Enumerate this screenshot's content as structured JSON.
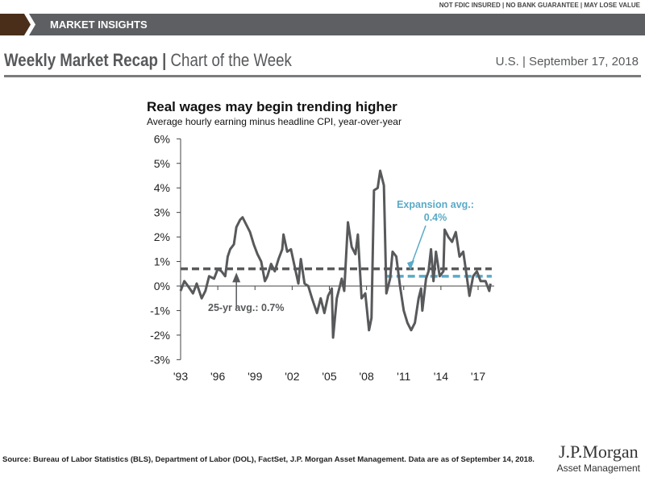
{
  "disclaimer": "NOT FDIC INSURED | NO BANK GUARANTEE | MAY LOSE VALUE",
  "banner": "MARKET INSIGHTS",
  "title_bold": "Weekly Market Recap |",
  "title_light": " Chart of the Week",
  "region_date": "U.S. | September 17, 2018",
  "source": "Source: Bureau of Labor Statistics (BLS), Department of Labor (DOL), FactSet, J.P. Morgan Asset Management. Data are as of September 14, 2018.",
  "logo": {
    "name": "J.P.Morgan",
    "sub": "Asset Management"
  },
  "chart_data": {
    "type": "line",
    "title": "Real wages may begin trending higher",
    "subtitle": "Average hourly earning minus headline CPI, year-over-year",
    "ylim": [
      -3,
      6
    ],
    "yticks": [
      "6%",
      "5%",
      "4%",
      "3%",
      "2%",
      "1%",
      "0%",
      "-1%",
      "-2%",
      "-3%"
    ],
    "xlim": [
      1993,
      2018.3
    ],
    "xticks": [
      {
        "v": 1993,
        "l": "'93"
      },
      {
        "v": 1996,
        "l": "'96"
      },
      {
        "v": 1999,
        "l": "'99"
      },
      {
        "v": 2002,
        "l": "'02"
      },
      {
        "v": 2005,
        "l": "'05"
      },
      {
        "v": 2008,
        "l": "'08"
      },
      {
        "v": 2011,
        "l": "'11"
      },
      {
        "v": 2014,
        "l": "'14"
      },
      {
        "v": 2017,
        "l": "'17"
      }
    ],
    "series": [
      {
        "name": "Real wages",
        "color": "#58595b",
        "x": [
          1993.0,
          1993.3,
          1993.6,
          1994.0,
          1994.3,
          1994.7,
          1995.0,
          1995.3,
          1995.7,
          1996.0,
          1996.3,
          1996.6,
          1996.8,
          1997.0,
          1997.3,
          1997.5,
          1997.8,
          1998.0,
          1998.3,
          1998.6,
          1998.9,
          1999.2,
          1999.5,
          1999.8,
          2000.0,
          2000.3,
          2000.6,
          2000.9,
          2001.2,
          2001.3,
          2001.6,
          2001.9,
          2002.2,
          2002.5,
          2002.7,
          2003.0,
          2003.3,
          2003.6,
          2004.0,
          2004.3,
          2004.6,
          2004.9,
          2005.2,
          2005.3,
          2005.6,
          2006.0,
          2006.2,
          2006.5,
          2006.8,
          2007.1,
          2007.3,
          2007.6,
          2007.9,
          2008.2,
          2008.4,
          2008.6,
          2008.9,
          2009.1,
          2009.4,
          2009.6,
          2009.9,
          2010.1,
          2010.4,
          2010.7,
          2011.0,
          2011.3,
          2011.6,
          2011.9,
          2012.2,
          2012.4,
          2012.5,
          2012.8,
          2013.0,
          2013.2,
          2013.4,
          2013.6,
          2013.9,
          2014.2,
          2014.3,
          2014.6,
          2014.9,
          2015.2,
          2015.5,
          2015.8,
          2016.0,
          2016.3,
          2016.6,
          2016.9,
          2017.2,
          2017.6,
          2017.9,
          2018.0
        ],
        "y": [
          -0.2,
          0.2,
          0.0,
          -0.3,
          0.1,
          -0.5,
          -0.2,
          0.4,
          0.3,
          0.7,
          0.6,
          0.4,
          1.2,
          1.5,
          1.7,
          2.4,
          2.7,
          2.8,
          2.5,
          2.2,
          1.7,
          1.3,
          1.0,
          0.2,
          0.4,
          0.9,
          0.6,
          1.1,
          1.5,
          2.1,
          1.4,
          1.5,
          0.8,
          0.1,
          1.1,
          0.1,
          0.0,
          -0.5,
          -1.1,
          -0.5,
          -1.1,
          -0.4,
          -0.1,
          -2.1,
          -0.5,
          0.3,
          -0.2,
          2.6,
          1.6,
          1.3,
          2.1,
          -0.5,
          -0.3,
          -1.8,
          -1.3,
          3.9,
          4.0,
          4.7,
          4.1,
          -0.3,
          0.3,
          1.4,
          1.2,
          0.0,
          -1.0,
          -1.5,
          -1.8,
          -1.5,
          -0.5,
          -0.1,
          -1.0,
          0.3,
          0.6,
          1.5,
          0.2,
          1.4,
          0.4,
          0.6,
          2.3,
          2.0,
          1.8,
          2.2,
          1.2,
          1.4,
          0.7,
          -0.4,
          0.4,
          0.6,
          0.2,
          0.2,
          -0.2,
          0.1
        ]
      }
    ],
    "reference_lines": [
      {
        "name": "25-yr avg",
        "value": 0.7,
        "from": 1993,
        "to": 2018.1,
        "color": "#58595b",
        "label": "25-yr avg.: 0.7%"
      },
      {
        "name": "Expansion avg",
        "value": 0.4,
        "from": 2009.5,
        "to": 2018.1,
        "color": "#5aaac8",
        "label": "Expansion avg.:",
        "label2": "0.4%"
      }
    ]
  }
}
